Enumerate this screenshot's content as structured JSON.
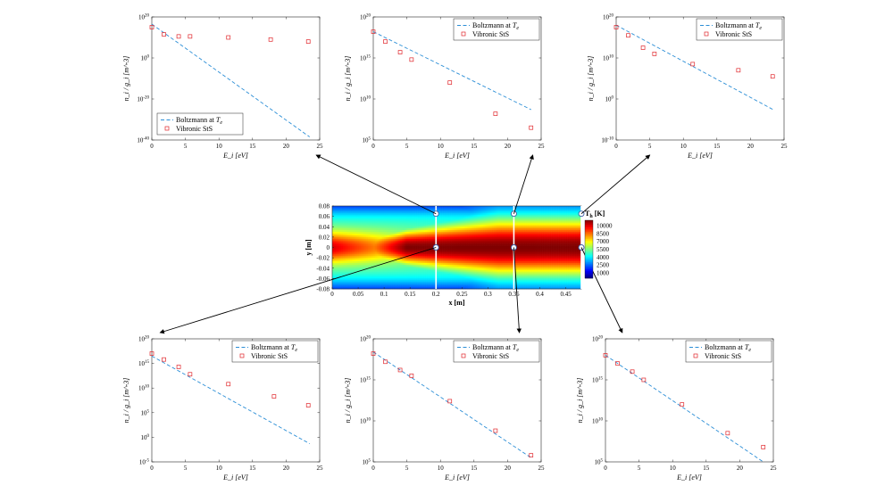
{
  "chart_data": [
    {
      "type": "scatter",
      "panel": "top-left",
      "xlabel": "E_i [eV]",
      "ylabel": "n_i / g_i [m^-3]",
      "xlim": [
        0,
        25
      ],
      "ylim_log10": [
        -40,
        20
      ],
      "xticks": [
        "0",
        "5",
        "10",
        "15",
        "20",
        "25"
      ],
      "yticks": [
        {
          "base": "10",
          "exp": "20"
        },
        {
          "base": "10",
          "exp": "0"
        },
        {
          "base": "10",
          "exp": "-20"
        },
        {
          "base": "10",
          "exp": "-40"
        }
      ],
      "legend": {
        "position": "bottom-left",
        "line_label": "Boltzmann at ",
        "line_sym": "T",
        "line_sub": "e",
        "marker_label": "Vibronic StS"
      },
      "boltzmann_line": {
        "x": [
          0,
          23.5
        ],
        "log10_y": [
          16.5,
          -38.5
        ]
      },
      "vibronic_points": {
        "x": [
          0,
          1.8,
          4,
          5.7,
          11.4,
          17.7,
          23.3
        ],
        "log10_y": [
          15,
          11.5,
          10.5,
          10.5,
          10,
          9,
          8
        ]
      }
    },
    {
      "type": "scatter",
      "panel": "top-middle",
      "xlabel": "E_i [eV]",
      "ylabel": "n_i / g_i [m^-3]",
      "xlim": [
        0,
        25
      ],
      "ylim_log10": [
        5,
        20
      ],
      "xticks": [
        "0",
        "5",
        "10",
        "15",
        "20",
        "25"
      ],
      "yticks": [
        {
          "base": "10",
          "exp": "20"
        },
        {
          "base": "10",
          "exp": "15"
        },
        {
          "base": "10",
          "exp": "10"
        },
        {
          "base": "10",
          "exp": "5"
        }
      ],
      "legend": {
        "position": "top-right",
        "line_label": "Boltzmann at ",
        "line_sym": "T",
        "line_sub": "e",
        "marker_label": "Vibronic StS"
      },
      "boltzmann_line": {
        "x": [
          0,
          23.5
        ],
        "log10_y": [
          18.2,
          8.7
        ]
      },
      "vibronic_points": {
        "x": [
          0,
          1.8,
          4,
          5.7,
          11.4,
          18.2,
          23.5
        ],
        "log10_y": [
          18.2,
          17,
          15.7,
          14.8,
          12,
          8.2,
          6.5
        ]
      }
    },
    {
      "type": "scatter",
      "panel": "top-right",
      "xlabel": "E_i [eV]",
      "ylabel": "n_i / g_i [m^-3]",
      "xlim": [
        0,
        25
      ],
      "ylim_log10": [
        -10,
        20
      ],
      "xticks": [
        "0",
        "5",
        "10",
        "15",
        "20",
        "25"
      ],
      "yticks": [
        {
          "base": "10",
          "exp": "20"
        },
        {
          "base": "10",
          "exp": "10"
        },
        {
          "base": "10",
          "exp": "0"
        },
        {
          "base": "10",
          "exp": "-10"
        }
      ],
      "legend": {
        "position": "top-right",
        "line_label": "Boltzmann at ",
        "line_sym": "T",
        "line_sub": "e",
        "marker_label": "Vibronic StS"
      },
      "boltzmann_line": {
        "x": [
          0,
          23.5
        ],
        "log10_y": [
          18,
          -2.7
        ]
      },
      "vibronic_points": {
        "x": [
          0,
          1.8,
          4,
          5.7,
          11.4,
          18.2,
          23.3
        ],
        "log10_y": [
          17.5,
          15.5,
          12.5,
          11,
          8.5,
          7,
          5.5
        ]
      }
    },
    {
      "type": "scatter",
      "panel": "bottom-left",
      "xlabel": "E_i [eV]",
      "ylabel": "n_i / g_i [m^-3]",
      "xlim": [
        0,
        25
      ],
      "ylim_log10": [
        -5,
        20
      ],
      "xticks": [
        "0",
        "5",
        "10",
        "15",
        "20",
        "25"
      ],
      "yticks": [
        {
          "base": "10",
          "exp": "20"
        },
        {
          "base": "10",
          "exp": "15"
        },
        {
          "base": "10",
          "exp": "10"
        },
        {
          "base": "10",
          "exp": "5"
        },
        {
          "base": "10",
          "exp": "0"
        },
        {
          "base": "10",
          "exp": "-5"
        }
      ],
      "legend": {
        "position": "top-right",
        "line_label": "Boltzmann at ",
        "line_sym": "T",
        "line_sub": "e",
        "marker_label": "Vibronic StS"
      },
      "boltzmann_line": {
        "x": [
          0,
          23.5
        ],
        "log10_y": [
          16.5,
          -1.3
        ]
      },
      "vibronic_points": {
        "x": [
          0,
          1.8,
          4,
          5.7,
          11.4,
          18.2,
          23.3
        ],
        "log10_y": [
          17,
          15.8,
          14.3,
          12.8,
          10.8,
          8.3,
          6.5
        ]
      }
    },
    {
      "type": "scatter",
      "panel": "bottom-middle",
      "xlabel": "E_i [eV]",
      "ylabel": "n_i / g_i [m^-3]",
      "xlim": [
        0,
        25
      ],
      "ylim_log10": [
        5,
        20
      ],
      "xticks": [
        "0",
        "5",
        "10",
        "15",
        "20",
        "25"
      ],
      "yticks": [
        {
          "base": "10",
          "exp": "20"
        },
        {
          "base": "10",
          "exp": "15"
        },
        {
          "base": "10",
          "exp": "10"
        },
        {
          "base": "10",
          "exp": "5"
        }
      ],
      "legend": {
        "position": "top-right",
        "line_label": "Boltzmann at ",
        "line_sym": "T",
        "line_sub": "e",
        "marker_label": "Vibronic StS"
      },
      "boltzmann_line": {
        "x": [
          0,
          23.5
        ],
        "log10_y": [
          18.4,
          5.5
        ]
      },
      "vibronic_points": {
        "x": [
          0,
          1.8,
          4,
          5.7,
          11.4,
          18.2,
          23.5
        ],
        "log10_y": [
          18.2,
          17.2,
          16.2,
          15.5,
          12.4,
          8.8,
          5.8
        ]
      }
    },
    {
      "type": "scatter",
      "panel": "bottom-right",
      "xlabel": "E_i [eV]",
      "ylabel": "n_i / g_i [m^-3]",
      "xlim": [
        0,
        25
      ],
      "ylim_log10": [
        5,
        20
      ],
      "xticks": [
        "0",
        "5",
        "10",
        "15",
        "20",
        "25"
      ],
      "yticks": [
        {
          "base": "10",
          "exp": "20"
        },
        {
          "base": "10",
          "exp": "15"
        },
        {
          "base": "10",
          "exp": "10"
        },
        {
          "base": "10",
          "exp": "5"
        }
      ],
      "legend": {
        "position": "top-right",
        "line_label": "Boltzmann at ",
        "line_sym": "T",
        "line_sub": "e",
        "marker_label": "Vibronic StS"
      },
      "boltzmann_line": {
        "x": [
          0,
          23.5
        ],
        "log10_y": [
          18,
          5
        ]
      },
      "vibronic_points": {
        "x": [
          0,
          1.8,
          4,
          5.7,
          11.4,
          18.2,
          23.5
        ],
        "log10_y": [
          18,
          17,
          16,
          15,
          12,
          8.5,
          6.8
        ]
      }
    },
    {
      "type": "heatmap",
      "panel": "center",
      "xlabel": "x [m]",
      "ylabel": "y [m]",
      "xlim": [
        0,
        0.48
      ],
      "ylim": [
        -0.08,
        0.08
      ],
      "xticks": [
        "0",
        "0.05",
        "0.1",
        "0.15",
        "0.2",
        "0.25",
        "0.3",
        "0.35",
        "0.4",
        "0.45"
      ],
      "yticks": [
        "0.08",
        "0.06",
        "0.04",
        "0.02",
        "0",
        "-0.02",
        "-0.04",
        "-0.06",
        "-0.08"
      ],
      "colorbar": {
        "title_sym": "T",
        "title_sub": "h",
        "title_unit": " [K]",
        "range": [
          0,
          11000
        ],
        "ticks": [
          10000,
          8500,
          7000,
          5500,
          4000,
          2500,
          1000
        ]
      },
      "probe_lines_x": [
        0.2,
        0.35,
        0.48
      ],
      "probes": [
        {
          "x": 0.2,
          "y": 0.065,
          "target_panel": "top-left"
        },
        {
          "x": 0.35,
          "y": 0.065,
          "target_panel": "top-middle"
        },
        {
          "x": 0.48,
          "y": 0.065,
          "target_panel": "top-right"
        },
        {
          "x": 0.2,
          "y": 0.0,
          "target_panel": "bottom-left"
        },
        {
          "x": 0.35,
          "y": 0.0,
          "target_panel": "bottom-middle"
        },
        {
          "x": 0.48,
          "y": 0.0,
          "target_panel": "bottom-right"
        }
      ]
    }
  ]
}
